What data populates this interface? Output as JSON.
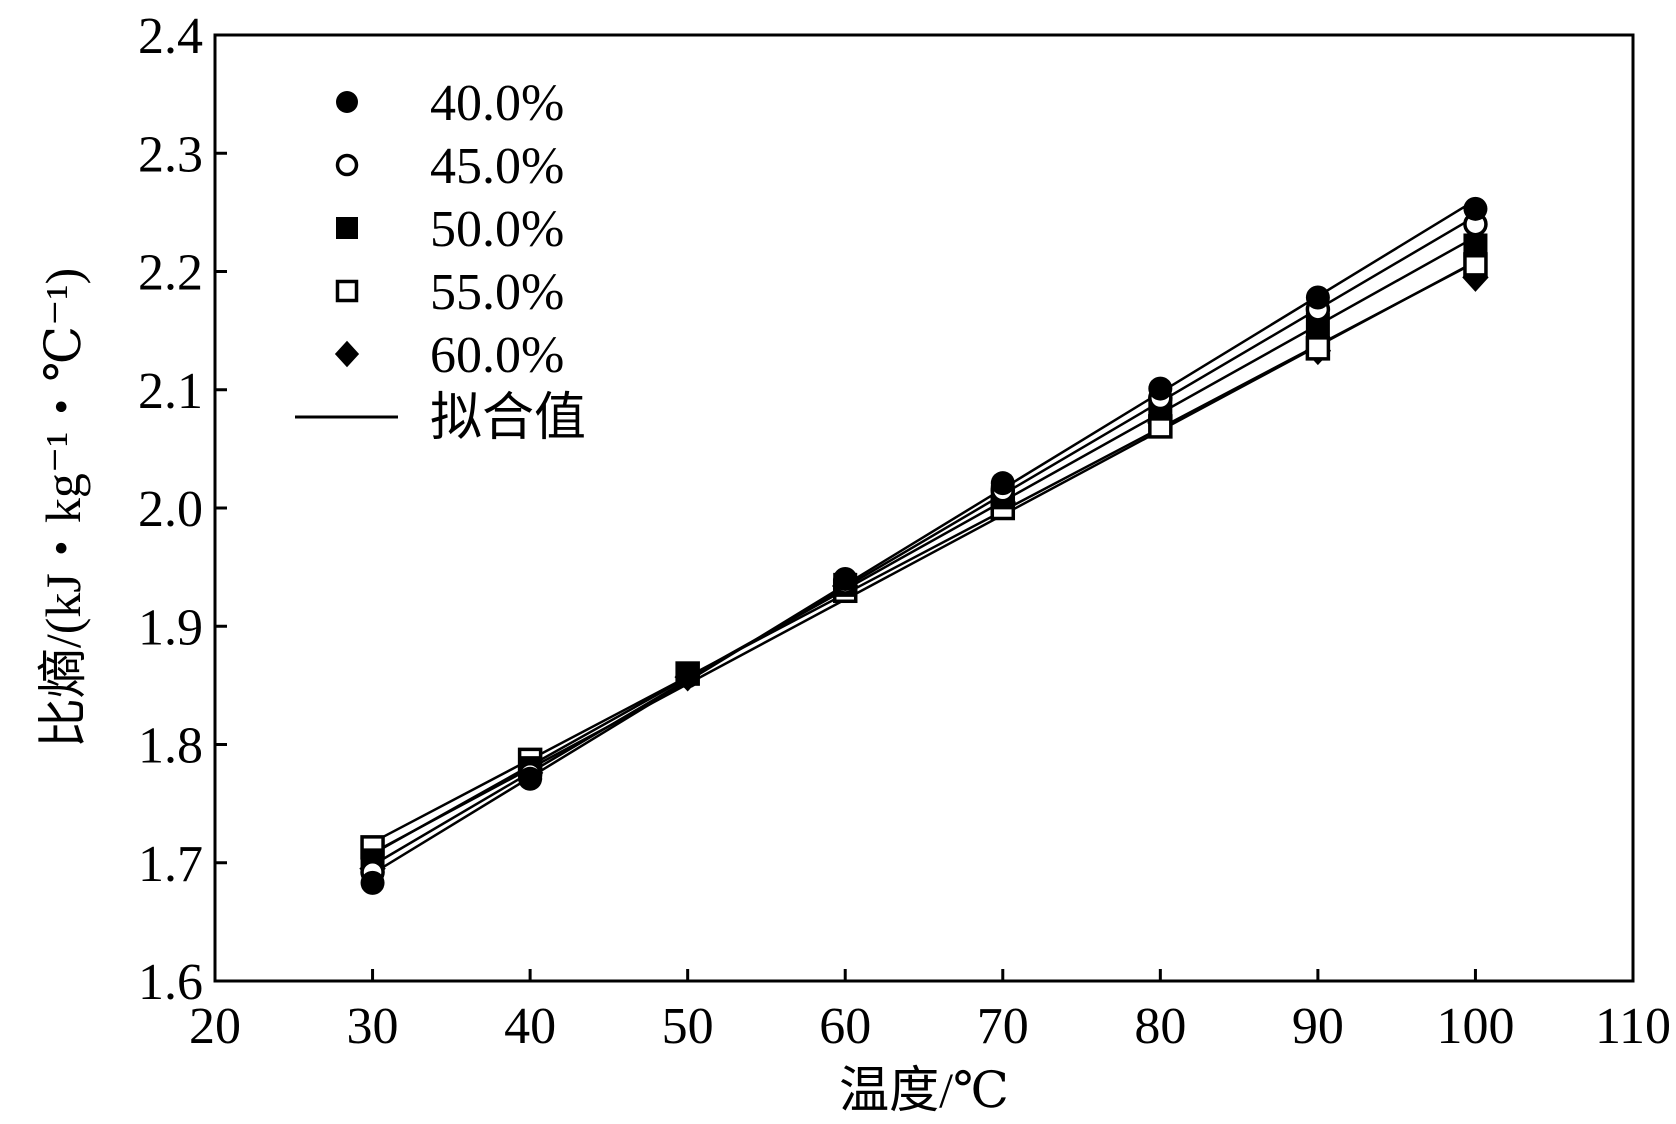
{
  "chart_data": {
    "type": "line",
    "title": "",
    "xlabel": "温度/℃",
    "ylabel": "比熵/(kJ・kg⁻¹・℃⁻¹)",
    "xlim": [
      20,
      110
    ],
    "ylim": [
      1.6,
      2.4
    ],
    "xticks": [
      "20",
      "30",
      "40",
      "50",
      "60",
      "70",
      "80",
      "90",
      "100",
      "110"
    ],
    "yticks": [
      "1.6",
      "1.7",
      "1.8",
      "1.9",
      "2.0",
      "2.1",
      "2.2",
      "2.3",
      "2.4"
    ],
    "x": [
      30,
      40,
      50,
      60,
      70,
      80,
      90,
      100
    ],
    "series": [
      {
        "name": "40.0%",
        "marker": "filled-circle",
        "values": [
          1.683,
          1.771,
          1.858,
          1.94,
          2.021,
          2.101,
          2.178,
          2.253
        ]
      },
      {
        "name": "45.0%",
        "marker": "open-circle",
        "values": [
          1.692,
          1.775,
          1.858,
          1.937,
          2.015,
          2.093,
          2.168,
          2.24
        ]
      },
      {
        "name": "50.0%",
        "marker": "filled-square",
        "values": [
          1.702,
          1.78,
          1.86,
          1.935,
          2.009,
          2.084,
          2.155,
          2.222
        ]
      },
      {
        "name": "55.0%",
        "marker": "open-square",
        "values": [
          1.713,
          1.787,
          1.86,
          1.93,
          2.0,
          2.069,
          2.135,
          2.206
        ]
      },
      {
        "name": "60.0%",
        "marker": "filled-diamond",
        "values": [
          1.695,
          1.776,
          1.857,
          1.934,
          2.005,
          2.072,
          2.133,
          2.195
        ]
      }
    ],
    "fit_legend_label": "拟合值",
    "legend_position": "top-left",
    "grid": false
  }
}
